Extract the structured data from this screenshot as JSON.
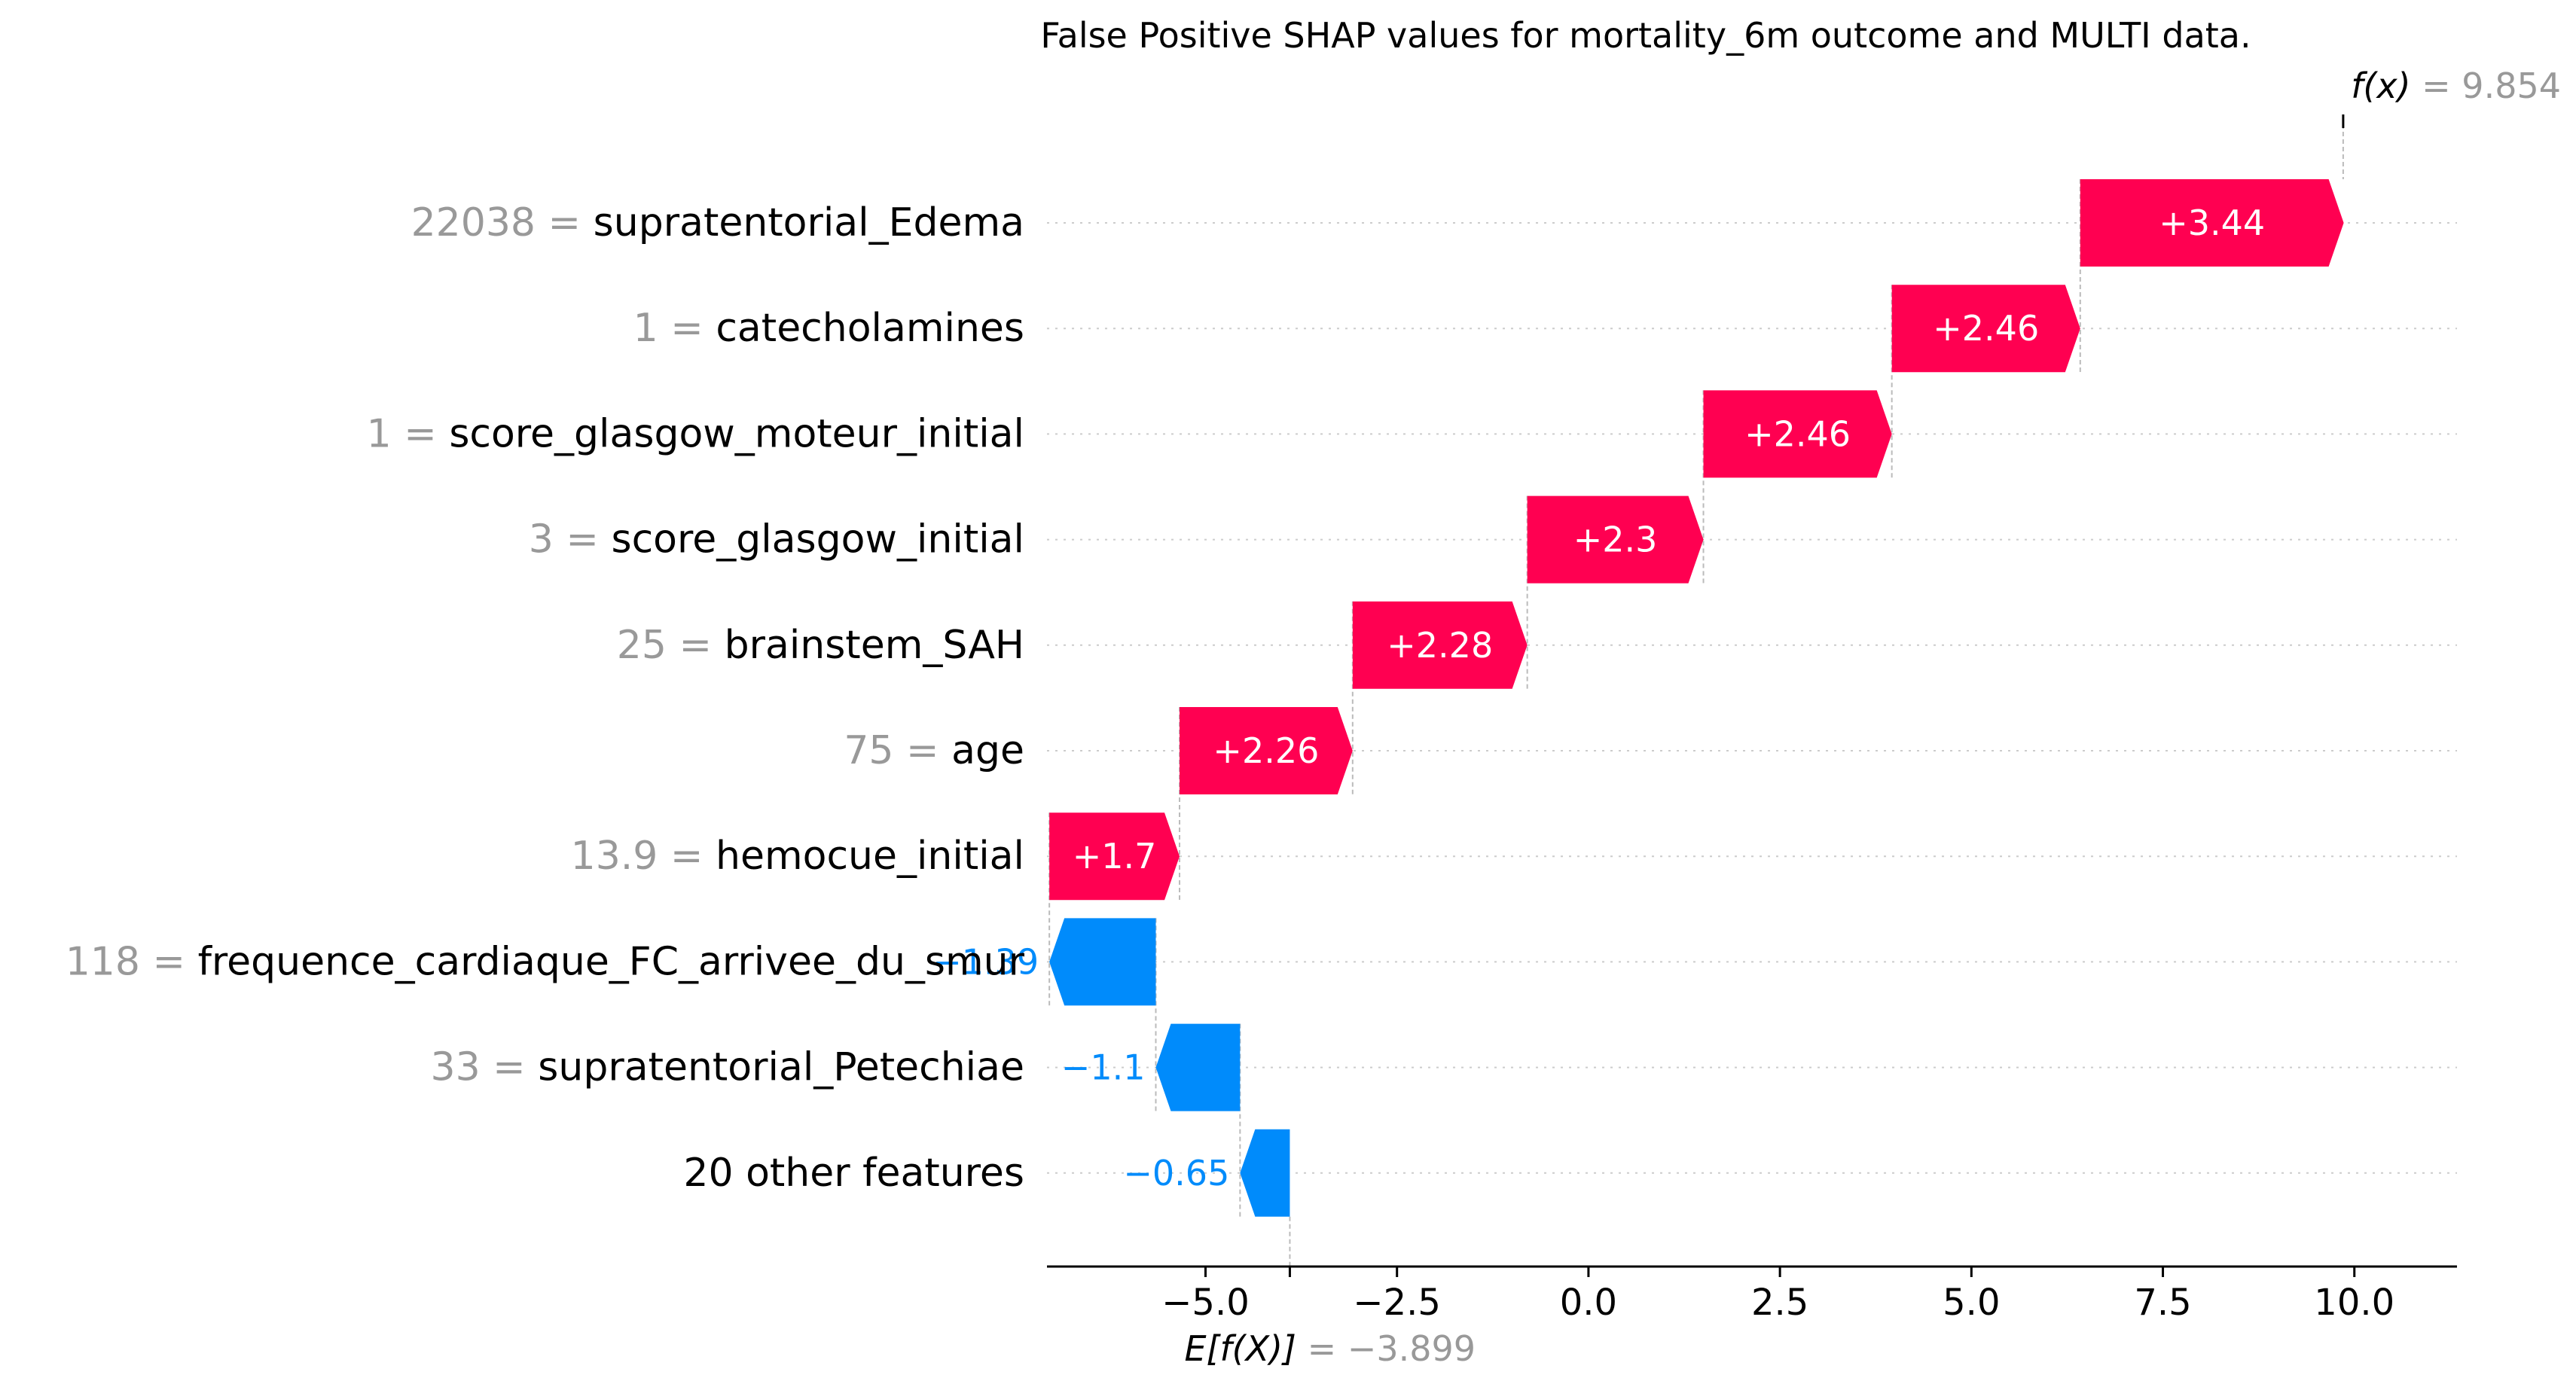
{
  "chart_data": {
    "type": "waterfall",
    "title": "False Positive SHAP values for mortality_6m outcome and MULTI data.",
    "base_value": -3.899,
    "output_value": 9.854,
    "base_label_italic": "E[f(X)]",
    "base_value_text": "= −3.899",
    "output_label_italic": "f(x)",
    "output_value_text": "= 9.854",
    "xlim": [
      -7.2,
      11.0
    ],
    "xticks": [
      -5.0,
      -2.5,
      0.0,
      2.5,
      5.0,
      7.5,
      10.0
    ],
    "xtick_labels": [
      "−5.0",
      "−2.5",
      "0.0",
      "2.5",
      "5.0",
      "7.5",
      "10.0"
    ],
    "colors": {
      "positive": "#ff0051",
      "negative": "#008bfb",
      "value_gray": "#999999",
      "text": "#000000"
    },
    "features": [
      {
        "value": "22038",
        "eq": " = ",
        "name": "supratentorial_Edema",
        "shap": 3.44,
        "label": "+3.44"
      },
      {
        "value": "1",
        "eq": " = ",
        "name": "catecholamines",
        "shap": 2.46,
        "label": "+2.46"
      },
      {
        "value": "1",
        "eq": " = ",
        "name": "score_glasgow_moteur_initial",
        "shap": 2.46,
        "label": "+2.46"
      },
      {
        "value": "3",
        "eq": " = ",
        "name": "score_glasgow_initial",
        "shap": 2.3,
        "label": "+2.3"
      },
      {
        "value": "25",
        "eq": " = ",
        "name": "brainstem_SAH",
        "shap": 2.28,
        "label": "+2.28"
      },
      {
        "value": "75",
        "eq": " = ",
        "name": "age",
        "shap": 2.26,
        "label": "+2.26"
      },
      {
        "value": "13.9",
        "eq": " = ",
        "name": "hemocue_initial",
        "shap": 1.7,
        "label": "+1.7"
      },
      {
        "value": "118",
        "eq": " = ",
        "name": "frequence_cardiaque_FC_arrivee_du_smur",
        "shap": -1.39,
        "label": "−1.39"
      },
      {
        "value": "33",
        "eq": " = ",
        "name": "supratentorial_Petechiae",
        "shap": -1.1,
        "label": "−1.1"
      },
      {
        "value": "",
        "eq": "",
        "name": "20 other features",
        "shap": -0.65,
        "label": "−0.65"
      }
    ]
  }
}
